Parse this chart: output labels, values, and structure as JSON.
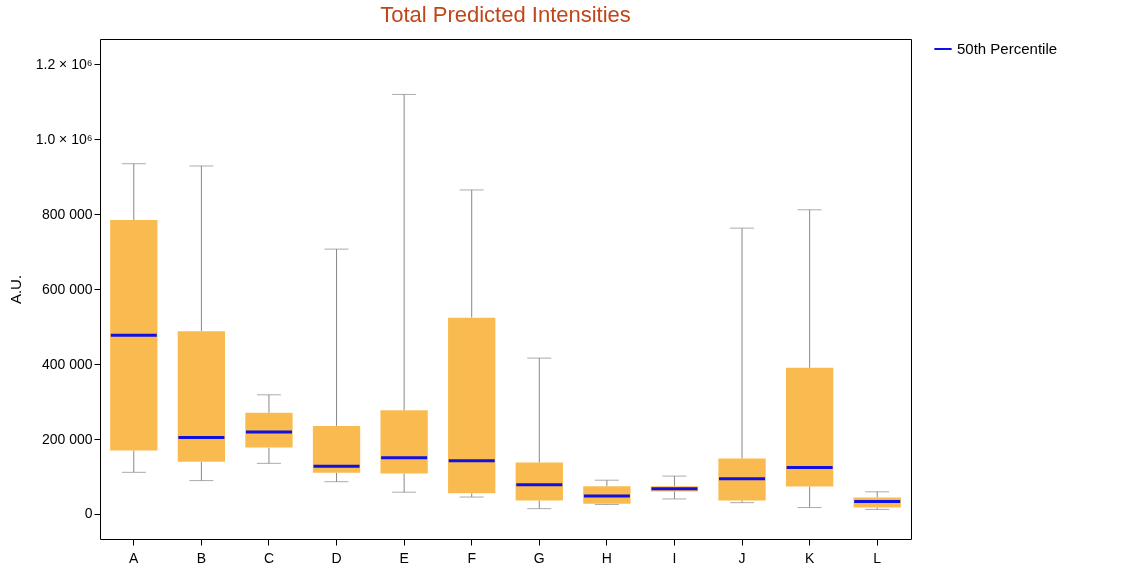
{
  "chart_data": {
    "type": "box",
    "title": "Total Predicted Intensities",
    "ylabel": "A.U.",
    "categories": [
      "A",
      "B",
      "C",
      "D",
      "E",
      "F",
      "G",
      "H",
      "I",
      "J",
      "K",
      "L"
    ],
    "ylim": [
      -67000,
      1268000
    ],
    "yticks": [
      0,
      {
        "value": 200000,
        "label": "200 000"
      },
      {
        "value": 400000,
        "label": "400 000"
      },
      {
        "value": 600000,
        "label": "600 000"
      },
      {
        "value": 800000,
        "label": "800 000"
      },
      {
        "value": 1000000,
        "label": "1.0 × 10⁶"
      },
      {
        "value": 1200000,
        "label": "1.2 × 10⁶"
      }
    ],
    "grid": false,
    "legend": "right",
    "series": [
      {
        "name": "50th Percentile",
        "color": "#1010e0",
        "colors": [
          "#f9bb4f",
          "#f9bb4f",
          "#f9bb4f",
          "#f9bb4f",
          "#f9bb4f",
          "#f9bb4f",
          "#f9bb4f",
          "#f9bb4f",
          "#f9bb4f",
          "#f9bb4f",
          "#f9bb4f",
          "#f9bb4f"
        ],
        "boxes": [
          {
            "low": 111000,
            "q1": 169000,
            "median": 477000,
            "q3": 785000,
            "high": 935000
          },
          {
            "low": 89000,
            "q1": 139000,
            "median": 204000,
            "q3": 488000,
            "high": 929000
          },
          {
            "low": 135000,
            "q1": 177000,
            "median": 219000,
            "q3": 270000,
            "high": 318000
          },
          {
            "low": 86000,
            "q1": 110000,
            "median": 127000,
            "q3": 235000,
            "high": 707000
          },
          {
            "low": 58000,
            "q1": 108000,
            "median": 150000,
            "q3": 277000,
            "high": 1120000
          },
          {
            "low": 45000,
            "q1": 55000,
            "median": 142000,
            "q3": 524000,
            "high": 865000
          },
          {
            "low": 14000,
            "q1": 36000,
            "median": 78000,
            "q3": 137000,
            "high": 416000
          },
          {
            "low": 25000,
            "q1": 27000,
            "median": 48000,
            "q3": 74000,
            "high": 90000
          },
          {
            "low": 40000,
            "q1": 60000,
            "median": 67000,
            "q3": 74000,
            "high": 101000
          },
          {
            "low": 30000,
            "q1": 36000,
            "median": 94000,
            "q3": 148000,
            "high": 763000
          },
          {
            "low": 17000,
            "q1": 73000,
            "median": 124000,
            "q3": 390000,
            "high": 812000
          },
          {
            "low": 12000,
            "q1": 17000,
            "median": 33000,
            "q3": 44000,
            "high": 59000
          }
        ]
      }
    ]
  }
}
